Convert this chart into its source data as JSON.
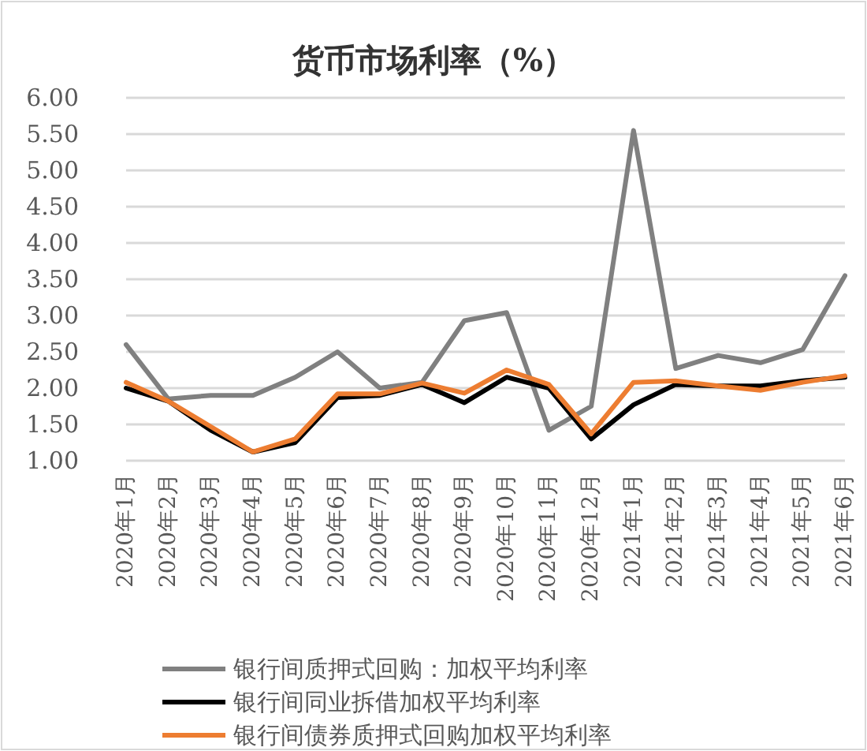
{
  "chart_data": {
    "type": "line",
    "title": "货币市场利率（%）",
    "categories": [
      "2020年1月",
      "2020年2月",
      "2020年3月",
      "2020年4月",
      "2020年5月",
      "2020年6月",
      "2020年7月",
      "2020年8月",
      "2020年9月",
      "2020年10月",
      "2020年11月",
      "2020年12月",
      "2021年1月",
      "2021年2月",
      "2021年3月",
      "2021年4月",
      "2021年5月",
      "2021年6月"
    ],
    "series": [
      {
        "name": "银行间质押式回购：加权平均利率",
        "color": "#808080",
        "values": [
          2.6,
          1.85,
          1.9,
          1.9,
          2.15,
          2.5,
          2.0,
          2.08,
          2.93,
          3.04,
          1.42,
          1.75,
          5.55,
          2.27,
          2.45,
          2.35,
          2.53,
          3.55
        ]
      },
      {
        "name": "银行间同业拆借加权平均利率",
        "color": "#000000",
        "values": [
          2.0,
          1.82,
          1.42,
          1.12,
          1.25,
          1.87,
          1.9,
          2.05,
          1.8,
          2.15,
          2.0,
          1.3,
          1.77,
          2.05,
          2.03,
          2.03,
          2.1,
          2.15
        ]
      },
      {
        "name": "银行间债券质押式回购加权平均利率",
        "color": "#ed7d31",
        "values": [
          2.08,
          1.82,
          1.47,
          1.12,
          1.3,
          1.92,
          1.92,
          2.07,
          1.93,
          2.25,
          2.05,
          1.37,
          2.08,
          2.1,
          2.03,
          1.97,
          2.08,
          2.17
        ]
      }
    ],
    "ylim": [
      1.0,
      6.0
    ],
    "yticks": [
      {
        "value": 1,
        "label": "1.00"
      },
      {
        "value": 1.5,
        "label": "1.50"
      },
      {
        "value": 2,
        "label": "2.00"
      },
      {
        "value": 2.5,
        "label": "2.50"
      },
      {
        "value": 3,
        "label": "3.00"
      },
      {
        "value": 3.5,
        "label": "3.50"
      },
      {
        "value": 4,
        "label": "4.00"
      },
      {
        "value": 4.5,
        "label": "4.50"
      },
      {
        "value": 5,
        "label": "5.00"
      },
      {
        "value": 5.5,
        "label": "5.50"
      },
      {
        "value": 6,
        "label": "6.00"
      }
    ],
    "grid": "y",
    "legend": "bottom"
  }
}
